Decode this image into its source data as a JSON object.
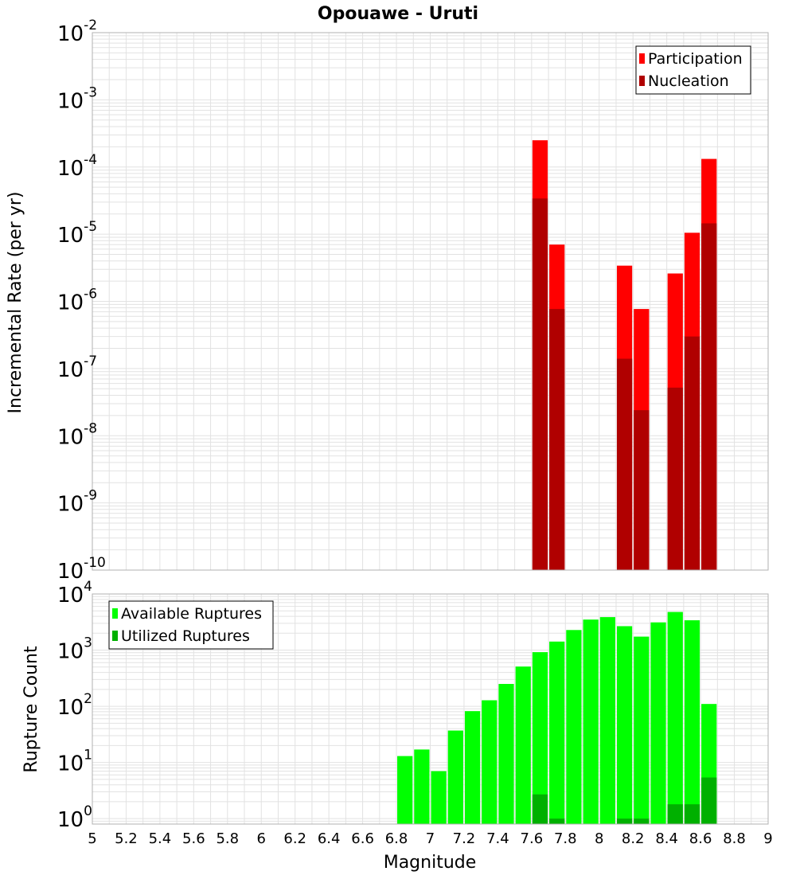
{
  "title": "Opouawe - Uruti",
  "xlabel": "Magnitude",
  "x_ticks": [
    "5",
    "5.2",
    "5.4",
    "5.6",
    "5.8",
    "6",
    "6.2",
    "6.4",
    "6.6",
    "6.8",
    "7",
    "7.2",
    "7.4",
    "7.6",
    "7.8",
    "8",
    "8.2",
    "8.4",
    "8.6",
    "8.8",
    "9"
  ],
  "colors": {
    "participation": "#ff0000",
    "nucleation": "#b00000",
    "available": "#00ff00",
    "utilized": "#00b000",
    "grid": "#e2e2e2",
    "frame": "#b0b0b0"
  },
  "chart_data": [
    {
      "type": "bar",
      "ylabel": "Incremental Rate (per yr)",
      "yscale": "log",
      "ylim": [
        1e-10,
        0.01
      ],
      "y_ticks": [
        {
          "base": "10",
          "exp": "-10"
        },
        {
          "base": "10",
          "exp": "-9"
        },
        {
          "base": "10",
          "exp": "-8"
        },
        {
          "base": "10",
          "exp": "-7"
        },
        {
          "base": "10",
          "exp": "-6"
        },
        {
          "base": "10",
          "exp": "-5"
        },
        {
          "base": "10",
          "exp": "-4"
        },
        {
          "base": "10",
          "exp": "-3"
        },
        {
          "base": "10",
          "exp": "-2"
        }
      ],
      "xlim": [
        5,
        9
      ],
      "bin_width": 0.1,
      "legend_position": "top-right",
      "series": [
        {
          "name": "Participation",
          "color_key": "participation",
          "points": [
            {
              "x": 7.65,
              "y": 0.00025
            },
            {
              "x": 7.75,
              "y": 7e-06
            },
            {
              "x": 8.15,
              "y": 3.4e-06
            },
            {
              "x": 8.25,
              "y": 7.7e-07
            },
            {
              "x": 8.45,
              "y": 2.6e-06
            },
            {
              "x": 8.55,
              "y": 1.05e-05
            },
            {
              "x": 8.65,
              "y": 0.000132
            }
          ]
        },
        {
          "name": "Nucleation",
          "color_key": "nucleation",
          "points": [
            {
              "x": 7.65,
              "y": 3.4e-05
            },
            {
              "x": 7.75,
              "y": 7.7e-07
            },
            {
              "x": 8.15,
              "y": 1.4e-07
            },
            {
              "x": 8.25,
              "y": 2.4e-08
            },
            {
              "x": 8.45,
              "y": 5.2e-08
            },
            {
              "x": 8.55,
              "y": 3e-07
            },
            {
              "x": 8.65,
              "y": 1.45e-05
            }
          ]
        }
      ]
    },
    {
      "type": "bar",
      "ylabel": "Rupture Count",
      "yscale": "log",
      "ylim": [
        0.8,
        10000
      ],
      "y_ticks": [
        {
          "base": "10",
          "exp": "0",
          "value": 1
        },
        {
          "base": "10",
          "exp": "1",
          "value": 10
        },
        {
          "base": "10",
          "exp": "2",
          "value": 100
        },
        {
          "base": "10",
          "exp": "3",
          "value": 1000
        },
        {
          "base": "10",
          "exp": "4",
          "value": 10000
        }
      ],
      "xlim": [
        5,
        9
      ],
      "bin_width": 0.1,
      "legend_position": "top-left",
      "series": [
        {
          "name": "Available Ruptures",
          "color_key": "available",
          "points": [
            {
              "x": 6.85,
              "y": 13
            },
            {
              "x": 6.95,
              "y": 17
            },
            {
              "x": 7.05,
              "y": 7
            },
            {
              "x": 7.15,
              "y": 37
            },
            {
              "x": 7.25,
              "y": 82
            },
            {
              "x": 7.35,
              "y": 128
            },
            {
              "x": 7.45,
              "y": 250
            },
            {
              "x": 7.55,
              "y": 510
            },
            {
              "x": 7.65,
              "y": 920
            },
            {
              "x": 7.75,
              "y": 1420
            },
            {
              "x": 7.85,
              "y": 2280
            },
            {
              "x": 7.95,
              "y": 3500
            },
            {
              "x": 8.05,
              "y": 3870
            },
            {
              "x": 8.15,
              "y": 2670
            },
            {
              "x": 8.25,
              "y": 1740
            },
            {
              "x": 8.35,
              "y": 3120
            },
            {
              "x": 8.45,
              "y": 4780
            },
            {
              "x": 8.55,
              "y": 3400
            },
            {
              "x": 8.65,
              "y": 110
            }
          ]
        },
        {
          "name": "Utilized Ruptures",
          "color_key": "utilized",
          "points": [
            {
              "x": 7.65,
              "y": 2.7
            },
            {
              "x": 7.75,
              "y": 1
            },
            {
              "x": 8.15,
              "y": 1
            },
            {
              "x": 8.25,
              "y": 1
            },
            {
              "x": 8.45,
              "y": 1.8
            },
            {
              "x": 8.55,
              "y": 1.8
            },
            {
              "x": 8.65,
              "y": 5.4
            }
          ]
        }
      ]
    }
  ]
}
